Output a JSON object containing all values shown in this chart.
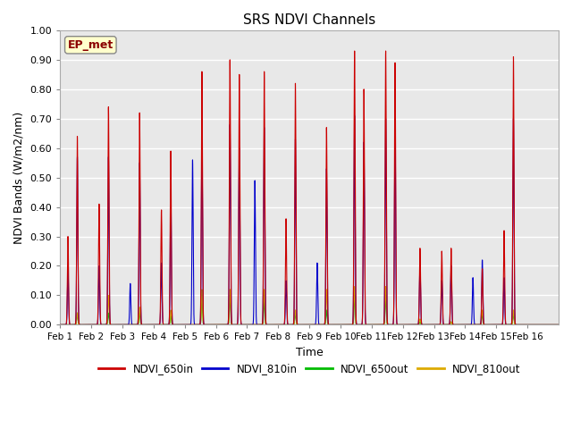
{
  "title": "SRS NDVI Channels",
  "xlabel": "Time",
  "ylabel": "NDVI Bands (W/m2/nm)",
  "ylim": [
    0.0,
    1.0
  ],
  "plot_bg_color": "#e8e8e8",
  "annotation_text": "EP_met",
  "annotation_color": "#8B0000",
  "annotation_bg": "#ffffcc",
  "legend_entries": [
    "NDVI_650in",
    "NDVI_810in",
    "NDVI_650out",
    "NDVI_810out"
  ],
  "legend_colors": [
    "#cc0000",
    "#0000cc",
    "#00bb00",
    "#ddaa00"
  ],
  "colors": {
    "NDVI_650in": "#cc0000",
    "NDVI_810in": "#0000cc",
    "NDVI_650out": "#00bb00",
    "NDVI_810out": "#ddaa00"
  },
  "xtick_labels": [
    "Feb 1",
    "Feb 2",
    "Feb 3",
    "Feb 4",
    "Feb 5",
    "Feb 6",
    "Feb 7",
    "Feb 8",
    "Feb 9",
    "Feb 10",
    "Feb 11",
    "Feb 12",
    "Feb 13",
    "Feb 14",
    "Feb 15",
    "Feb 16"
  ],
  "ytick_labels": [
    "0.00",
    "0.10",
    "0.20",
    "0.30",
    "0.40",
    "0.50",
    "0.60",
    "0.70",
    "0.80",
    "0.90",
    "1.00"
  ],
  "peaks": {
    "NDVI_650in": {
      "main_pos": [
        0.55,
        1.55,
        2.55,
        3.55,
        4.55,
        5.45,
        6.55,
        7.55,
        8.55,
        9.45,
        10.45,
        11.55,
        12.55,
        13.55,
        14.55,
        15.5
      ],
      "main_val": [
        0.64,
        0.74,
        0.72,
        0.59,
        0.86,
        0.9,
        0.86,
        0.82,
        0.67,
        0.93,
        0.93,
        0.26,
        0.26,
        0.19,
        0.91,
        0.0
      ],
      "sec_pos": [
        0.25,
        1.25,
        -1,
        3.25,
        -1,
        5.75,
        -1,
        7.25,
        -1,
        9.75,
        10.75,
        -1,
        12.25,
        -1,
        14.25,
        -1
      ],
      "sec_val": [
        0.3,
        0.41,
        0,
        0.39,
        0,
        0.85,
        0,
        0.36,
        0,
        0.8,
        0.89,
        0,
        0.25,
        0,
        0.32,
        0
      ]
    },
    "NDVI_810in": {
      "main_pos": [
        0.55,
        1.55,
        2.55,
        3.55,
        4.55,
        5.45,
        6.55,
        7.55,
        8.55,
        9.45,
        10.45,
        11.55,
        12.55,
        13.55,
        14.55,
        15.5
      ],
      "main_val": [
        0.57,
        0.57,
        0.55,
        0.46,
        0.65,
        0.68,
        0.67,
        0.63,
        0.53,
        0.71,
        0.7,
        0.21,
        0.2,
        0.22,
        0.7,
        0.0
      ],
      "sec_pos": [
        0.25,
        1.25,
        2.25,
        3.25,
        4.25,
        5.75,
        6.25,
        7.25,
        8.25,
        9.75,
        10.75,
        -1,
        12.25,
        13.25,
        14.25,
        -1
      ],
      "sec_val": [
        0.19,
        0.2,
        0.14,
        0.21,
        0.56,
        0.6,
        0.49,
        0.15,
        0.21,
        0.62,
        0.69,
        0,
        0.15,
        0.16,
        0.16,
        0
      ]
    },
    "NDVI_650out": {
      "main_pos": [
        0.55,
        1.55,
        2.55,
        3.55,
        4.55,
        5.45,
        6.55,
        7.55,
        8.55,
        9.45,
        10.45,
        11.55,
        12.55,
        13.55,
        14.55,
        15.5
      ],
      "main_val": [
        0.04,
        0.04,
        0.04,
        0.03,
        0.09,
        0.1,
        0.08,
        0.04,
        0.05,
        0.1,
        0.1,
        0.01,
        0.01,
        0.04,
        0.04,
        0.0
      ],
      "sec_pos": [
        -1,
        -1,
        -1,
        -1,
        -1,
        -1,
        -1,
        -1,
        -1,
        -1,
        -1,
        -1,
        -1,
        -1,
        -1,
        -1
      ],
      "sec_val": [
        0,
        0,
        0,
        0,
        0,
        0,
        0,
        0,
        0,
        0,
        0,
        0,
        0,
        0,
        0,
        0
      ]
    },
    "NDVI_810out": {
      "main_pos": [
        0.55,
        1.55,
        2.55,
        3.55,
        4.55,
        5.45,
        6.55,
        7.55,
        8.55,
        9.45,
        10.45,
        11.55,
        12.55,
        13.55,
        14.55,
        15.5
      ],
      "main_val": [
        0.04,
        0.1,
        0.06,
        0.05,
        0.12,
        0.12,
        0.12,
        0.05,
        0.12,
        0.13,
        0.13,
        0.02,
        0.01,
        0.05,
        0.05,
        0.0
      ],
      "sec_pos": [
        -1,
        -1,
        -1,
        -1,
        -1,
        -1,
        -1,
        -1,
        -1,
        -1,
        -1,
        -1,
        -1,
        -1,
        -1,
        -1
      ],
      "sec_val": [
        0,
        0,
        0,
        0,
        0,
        0,
        0,
        0,
        0,
        0,
        0,
        0,
        0,
        0,
        0,
        0
      ]
    }
  }
}
